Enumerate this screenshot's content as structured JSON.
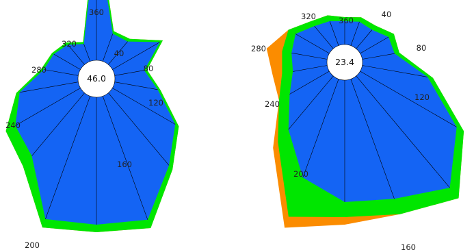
{
  "chart_data": [
    {
      "type": "polar-area",
      "center_label": "46.0",
      "angular_ticks": [
        "40",
        "80",
        "120",
        "160",
        "200",
        "240",
        "280",
        "320",
        "360"
      ],
      "directions": [
        0,
        20,
        40,
        60,
        80,
        100,
        120,
        140,
        160,
        180,
        200,
        220,
        240,
        260,
        280,
        300,
        320,
        340
      ],
      "series": [
        {
          "color": "#fb8c00",
          "values": [
            235,
            74,
            76,
            112,
            75,
            95,
            139,
            173,
            232,
            224,
            231,
            167,
            153,
            119,
            82,
            75,
            69,
            57
          ]
        },
        {
          "color": "#00e600",
          "values": [
            235,
            74,
            76,
            112,
            75,
            95,
            139,
            173,
            232,
            224,
            231,
            167,
            153,
            119,
            82,
            75,
            69,
            57
          ]
        },
        {
          "color": "#1464f4",
          "values": [
            217,
            70,
            71,
            107,
            71,
            91,
            133,
            165,
            219,
            213,
            218,
            147,
            137,
            114,
            78,
            72,
            65,
            54
          ]
        }
      ]
    },
    {
      "type": "polar-area",
      "center_label": "23.4",
      "angular_ticks": [
        "40",
        "80",
        "120",
        "160",
        "200",
        "240",
        "280",
        "320",
        "360"
      ],
      "directions": [
        0,
        20,
        40,
        60,
        80,
        100,
        120,
        140,
        160,
        180,
        200,
        220,
        240,
        260,
        280,
        300,
        320,
        340
      ],
      "series": [
        {
          "color": "#fb8c00",
          "values": [
            66,
            70,
            70,
            83,
            81,
            131,
            201,
            259,
            236,
            237,
            257,
            163,
            111,
            107,
            116,
            95,
            78,
            73
          ]
        },
        {
          "color": "#00e600",
          "values": [
            66,
            70,
            70,
            83,
            81,
            131,
            201,
            259,
            236,
            226,
            240,
            152,
            111,
            93,
            93,
            95,
            78,
            73
          ]
        },
        {
          "color": "#1464f4",
          "values": [
            60,
            63,
            62,
            74,
            74,
            123,
            189,
            239,
            212,
            204,
            179,
            128,
            93,
            77,
            79,
            83,
            69,
            64
          ]
        }
      ]
    }
  ]
}
